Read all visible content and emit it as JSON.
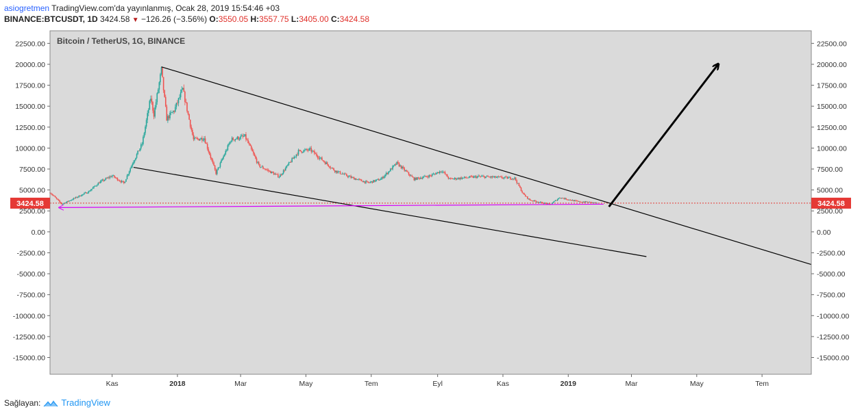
{
  "header": {
    "author": "asiogretmen",
    "published": "TradingView.com'da yayınlanmış, Ocak 28, 2019 15:54:46 +03",
    "symbol": "BINANCE:BTCUSDT, 1D",
    "last": "3424.58",
    "change": "−126.26 (−3.56%)",
    "o_label": "O:",
    "o_value": "3550.05",
    "h_label": "H:",
    "h_value": "3557.75",
    "l_label": "L:",
    "l_value": "3405.00",
    "c_label": "C:",
    "c_value": "3424.58"
  },
  "footer": {
    "provided_by": "Sağlayan:",
    "brand": "TradingView"
  },
  "colors": {
    "background": "#dadada",
    "up": "#26a69a",
    "down": "#ef5350",
    "price_line": "#e53935",
    "support": "#d500f9",
    "trend": "#000000"
  },
  "chart_data": {
    "type": "candlestick",
    "title": "Bitcoin / TetherUS, 1G, BINANCE",
    "ylim": [
      -17000,
      24000
    ],
    "y_ticks": [
      22500,
      20000,
      17500,
      15000,
      12500,
      10000,
      7500,
      5000,
      2500,
      0,
      -2500,
      -5000,
      -7500,
      -10000,
      -12500,
      -15000
    ],
    "y_tick_labels": [
      "22500.00",
      "20000.00",
      "17500.00",
      "15000.00",
      "12500.00",
      "10000.00",
      "7500.00",
      "5000.00",
      "2500.00",
      "0.00",
      "-2500.00",
      "-5000.00",
      "-7500.00",
      "-10000.00",
      "-12500.00",
      "-15000.00"
    ],
    "x_ticks": [
      {
        "label": "Kas",
        "date": "2017-11-01",
        "bold": false
      },
      {
        "label": "2018",
        "date": "2018-01-01",
        "bold": true
      },
      {
        "label": "Mar",
        "date": "2018-03-01",
        "bold": false
      },
      {
        "label": "May",
        "date": "2018-05-01",
        "bold": false
      },
      {
        "label": "Tem",
        "date": "2018-07-01",
        "bold": false
      },
      {
        "label": "Eyl",
        "date": "2018-09-01",
        "bold": false
      },
      {
        "label": "Kas",
        "date": "2018-11-01",
        "bold": false
      },
      {
        "label": "2019",
        "date": "2019-01-01",
        "bold": true
      },
      {
        "label": "Mar",
        "date": "2019-03-01",
        "bold": false
      },
      {
        "label": "May",
        "date": "2019-05-01",
        "bold": false
      },
      {
        "label": "Tem",
        "date": "2019-07-01",
        "bold": false
      }
    ],
    "x_range": [
      "2017-09-04",
      "2019-08-16"
    ],
    "current_price": 3424.58,
    "current_price_label": "3424.58",
    "price_path": [
      [
        "2017-09-04",
        4700
      ],
      [
        "2017-09-15",
        3300
      ],
      [
        "2017-09-25",
        3900
      ],
      [
        "2017-10-10",
        4800
      ],
      [
        "2017-10-20",
        5900
      ],
      [
        "2017-11-01",
        6700
      ],
      [
        "2017-11-12",
        5800
      ],
      [
        "2017-11-20",
        8200
      ],
      [
        "2017-11-29",
        10500
      ],
      [
        "2017-12-07",
        16000
      ],
      [
        "2017-12-10",
        14000
      ],
      [
        "2017-12-17",
        19300
      ],
      [
        "2017-12-22",
        13500
      ],
      [
        "2017-12-29",
        14500
      ],
      [
        "2018-01-06",
        17000
      ],
      [
        "2018-01-16",
        11000
      ],
      [
        "2018-01-26",
        11200
      ],
      [
        "2018-02-06",
        7000
      ],
      [
        "2018-02-20",
        11000
      ],
      [
        "2018-03-05",
        11400
      ],
      [
        "2018-03-18",
        7900
      ],
      [
        "2018-04-06",
        6600
      ],
      [
        "2018-04-24",
        9600
      ],
      [
        "2018-05-05",
        9800
      ],
      [
        "2018-05-28",
        7300
      ],
      [
        "2018-06-12",
        6500
      ],
      [
        "2018-06-28",
        5850
      ],
      [
        "2018-07-10",
        6300
      ],
      [
        "2018-07-25",
        8200
      ],
      [
        "2018-08-10",
        6300
      ],
      [
        "2018-08-25",
        6700
      ],
      [
        "2018-09-05",
        7300
      ],
      [
        "2018-09-12",
        6300
      ],
      [
        "2018-10-10",
        6600
      ],
      [
        "2018-11-12",
        6400
      ],
      [
        "2018-11-20",
        4500
      ],
      [
        "2018-11-26",
        3800
      ],
      [
        "2018-12-15",
        3250
      ],
      [
        "2018-12-24",
        4100
      ],
      [
        "2019-01-10",
        3600
      ],
      [
        "2019-01-20",
        3550
      ],
      [
        "2019-01-28",
        3424.58
      ]
    ],
    "drawings": [
      {
        "kind": "trendline",
        "name": "upper-trendline",
        "from": [
          "2017-12-17",
          19700
        ],
        "to": [
          "2019-08-16",
          -3900
        ]
      },
      {
        "kind": "trendline",
        "name": "lower-trendline",
        "from": [
          "2017-11-21",
          7700
        ],
        "to": [
          "2019-03-15",
          -2950
        ]
      },
      {
        "kind": "arrow",
        "name": "support-line",
        "from": [
          "2019-02-03",
          3300
        ],
        "to": [
          "2017-09-13",
          2900
        ]
      },
      {
        "kind": "arrow",
        "name": "breakout-arrow",
        "from": [
          "2019-02-08",
          3000
        ],
        "to": [
          "2019-05-21",
          20000
        ]
      }
    ]
  }
}
